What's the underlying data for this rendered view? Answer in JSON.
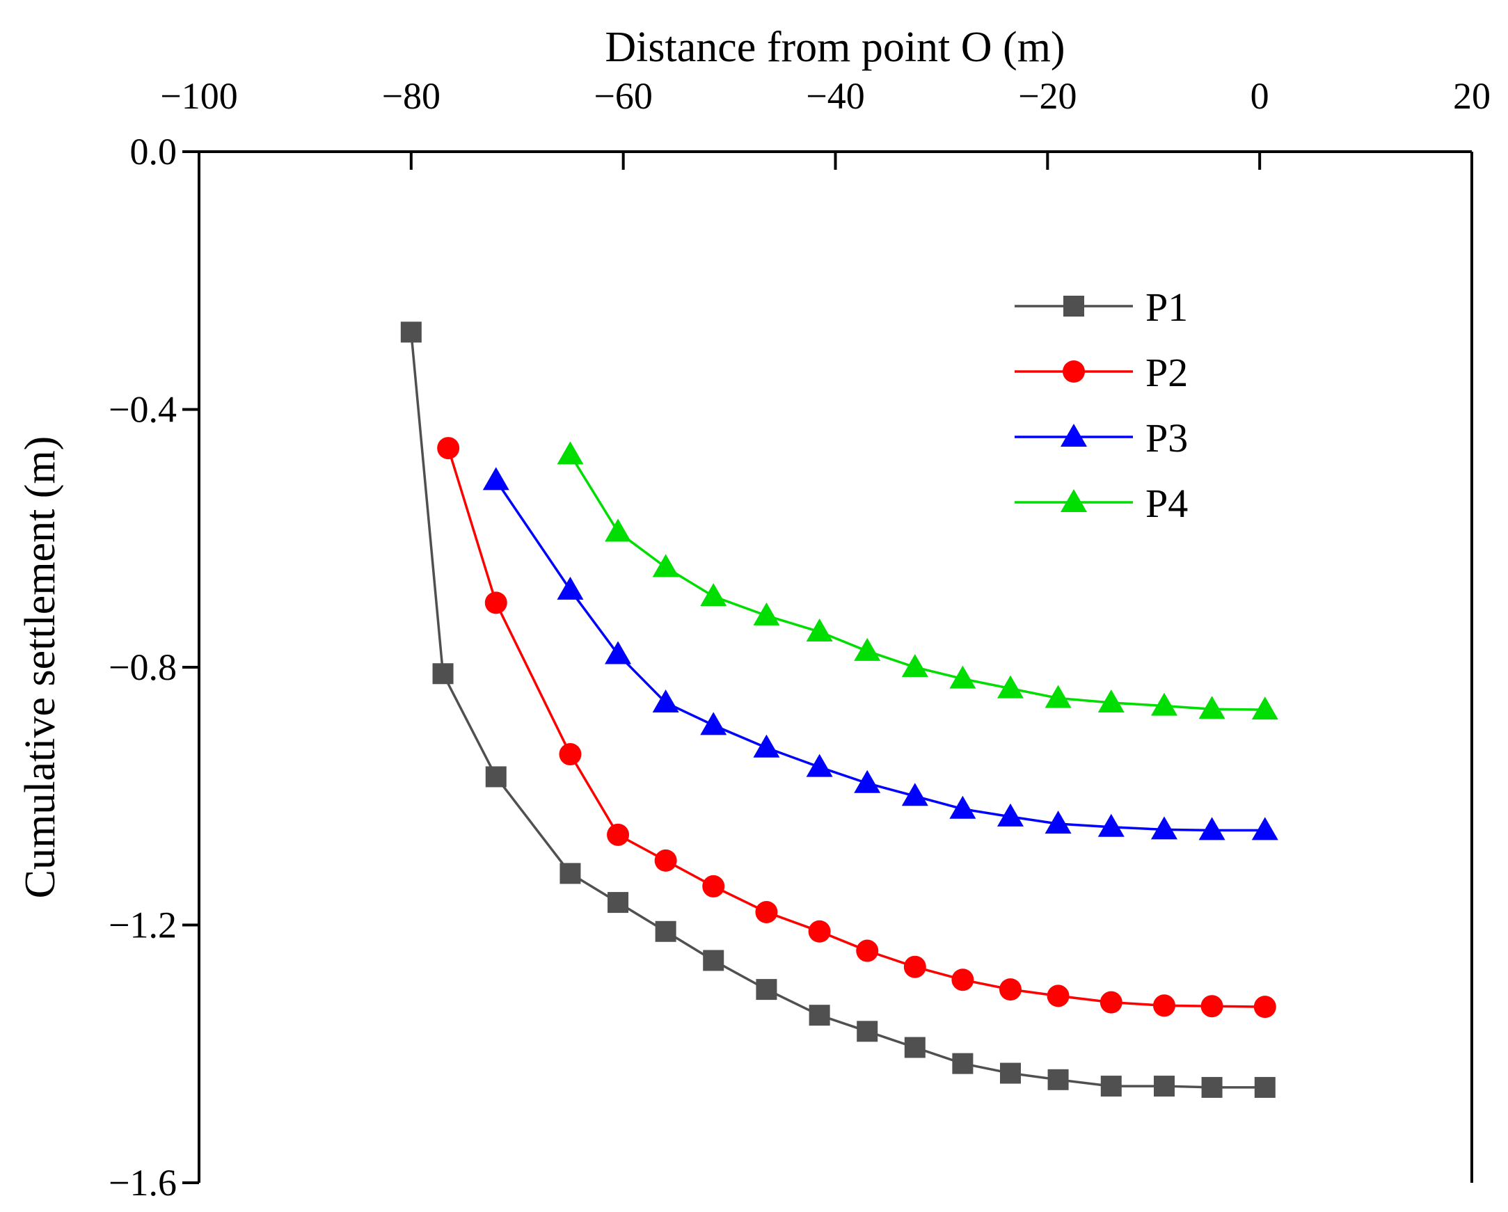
{
  "chart_data": {
    "type": "line",
    "xlabel": "Distance from point O (m)",
    "ylabel": "Cumulative settlement (m)",
    "xlim": [
      -100,
      20
    ],
    "ylim": [
      -1.6,
      0.0
    ],
    "x_ticks": [
      "−100",
      "−80",
      "−60",
      "−40",
      "−20",
      "0",
      "20"
    ],
    "x_tick_values": [
      -100,
      -80,
      -60,
      -40,
      -20,
      0,
      20
    ],
    "y_ticks": [
      "0.0",
      "−0.4",
      "−0.8",
      "−1.2",
      "−1.6"
    ],
    "y_tick_values": [
      0.0,
      -0.4,
      -0.8,
      -1.2,
      -1.6
    ],
    "x_axis_position": "top",
    "grid": false,
    "legend_position": "top-right",
    "series": [
      {
        "name": "P1",
        "color": "#505050",
        "marker": "square",
        "x": [
          -80,
          -77,
          -72,
          -65,
          -60.5,
          -56,
          -51.5,
          -46.5,
          -41.5,
          -37,
          -32.5,
          -28,
          -23.5,
          -19,
          -14,
          -9,
          -4.5,
          0.5
        ],
        "y": [
          -0.28,
          -0.81,
          -0.97,
          -1.12,
          -1.165,
          -1.21,
          -1.255,
          -1.3,
          -1.34,
          -1.365,
          -1.39,
          -1.415,
          -1.43,
          -1.44,
          -1.45,
          -1.45,
          -1.452,
          -1.452
        ]
      },
      {
        "name": "P2",
        "color": "#ff0000",
        "marker": "circle",
        "x": [
          -76.5,
          -72,
          -65,
          -60.5,
          -56,
          -51.5,
          -46.5,
          -41.5,
          -37,
          -32.5,
          -28,
          -23.5,
          -19,
          -14,
          -9,
          -4.5,
          0.5
        ],
        "y": [
          -0.46,
          -0.7,
          -0.935,
          -1.06,
          -1.1,
          -1.14,
          -1.18,
          -1.21,
          -1.24,
          -1.265,
          -1.285,
          -1.3,
          -1.31,
          -1.32,
          -1.325,
          -1.326,
          -1.327
        ]
      },
      {
        "name": "P3",
        "color": "#0000ff",
        "marker": "triangle",
        "x": [
          -72,
          -65,
          -60.5,
          -56,
          -51.5,
          -46.5,
          -41.5,
          -37,
          -32.5,
          -28,
          -23.5,
          -19,
          -14,
          -9,
          -4.5,
          0.5
        ],
        "y": [
          -0.51,
          -0.68,
          -0.78,
          -0.855,
          -0.89,
          -0.925,
          -0.955,
          -0.98,
          -1.0,
          -1.02,
          -1.032,
          -1.043,
          -1.048,
          -1.052,
          -1.053,
          -1.053
        ]
      },
      {
        "name": "P4",
        "color": "#00dd00",
        "marker": "triangle",
        "x": [
          -65,
          -60.5,
          -56,
          -51.5,
          -46.5,
          -41.5,
          -37,
          -32.5,
          -28,
          -23.5,
          -19,
          -14,
          -9,
          -4.5,
          0.5
        ],
        "y": [
          -0.47,
          -0.59,
          -0.645,
          -0.69,
          -0.72,
          -0.745,
          -0.775,
          -0.8,
          -0.818,
          -0.833,
          -0.848,
          -0.855,
          -0.86,
          -0.865,
          -0.866
        ]
      }
    ]
  }
}
